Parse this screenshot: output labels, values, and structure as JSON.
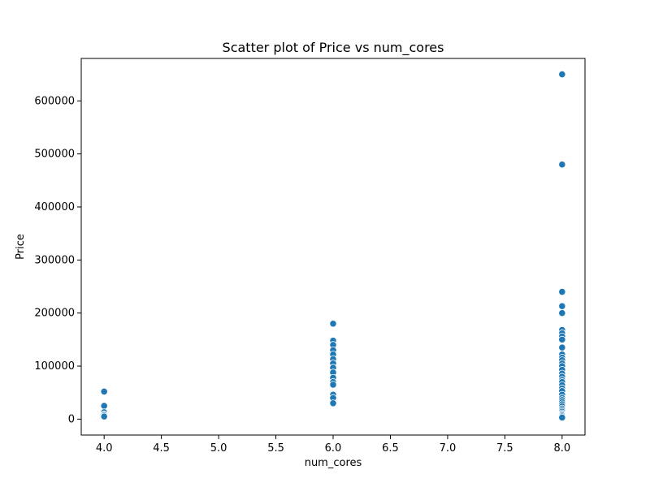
{
  "chart_data": {
    "type": "scatter",
    "title": "Scatter plot of Price vs num_cores",
    "xlabel": "num_cores",
    "ylabel": "Price",
    "xlim": [
      3.8,
      8.2
    ],
    "ylim": [
      -30000,
      680000
    ],
    "xticks": [
      4.0,
      4.5,
      5.0,
      5.5,
      6.0,
      6.5,
      7.0,
      7.5,
      8.0
    ],
    "xtick_labels": [
      "4.0",
      "4.5",
      "5.0",
      "5.5",
      "6.0",
      "6.5",
      "7.0",
      "7.5",
      "8.0"
    ],
    "yticks": [
      0,
      100000,
      200000,
      300000,
      400000,
      500000,
      600000
    ],
    "ytick_labels": [
      "0",
      "100000",
      "200000",
      "300000",
      "400000",
      "500000",
      "600000"
    ],
    "grid": false,
    "color": "#1f77b4",
    "points": [
      {
        "x": 4,
        "y": 52000
      },
      {
        "x": 4,
        "y": 25000
      },
      {
        "x": 4,
        "y": 13000
      },
      {
        "x": 4,
        "y": 9000
      },
      {
        "x": 4,
        "y": 7000
      },
      {
        "x": 4,
        "y": 5000
      },
      {
        "x": 6,
        "y": 180000
      },
      {
        "x": 6,
        "y": 148000
      },
      {
        "x": 6,
        "y": 140000
      },
      {
        "x": 6,
        "y": 130000
      },
      {
        "x": 6,
        "y": 122000
      },
      {
        "x": 6,
        "y": 113000
      },
      {
        "x": 6,
        "y": 105000
      },
      {
        "x": 6,
        "y": 97000
      },
      {
        "x": 6,
        "y": 88000
      },
      {
        "x": 6,
        "y": 78000
      },
      {
        "x": 6,
        "y": 70000
      },
      {
        "x": 6,
        "y": 65000
      },
      {
        "x": 6,
        "y": 46000
      },
      {
        "x": 6,
        "y": 40000
      },
      {
        "x": 6,
        "y": 30000
      },
      {
        "x": 8,
        "y": 650000
      },
      {
        "x": 8,
        "y": 480000
      },
      {
        "x": 8,
        "y": 240000
      },
      {
        "x": 8,
        "y": 213000
      },
      {
        "x": 8,
        "y": 200000
      },
      {
        "x": 8,
        "y": 168000
      },
      {
        "x": 8,
        "y": 162000
      },
      {
        "x": 8,
        "y": 156000
      },
      {
        "x": 8,
        "y": 150000
      },
      {
        "x": 8,
        "y": 135000
      },
      {
        "x": 8,
        "y": 122000
      },
      {
        "x": 8,
        "y": 116000
      },
      {
        "x": 8,
        "y": 111000
      },
      {
        "x": 8,
        "y": 105000
      },
      {
        "x": 8,
        "y": 100000
      },
      {
        "x": 8,
        "y": 93000
      },
      {
        "x": 8,
        "y": 86000
      },
      {
        "x": 8,
        "y": 80000
      },
      {
        "x": 8,
        "y": 74000
      },
      {
        "x": 8,
        "y": 70000
      },
      {
        "x": 8,
        "y": 64000
      },
      {
        "x": 8,
        "y": 58000
      },
      {
        "x": 8,
        "y": 53000
      },
      {
        "x": 8,
        "y": 46000
      },
      {
        "x": 8,
        "y": 40000
      },
      {
        "x": 8,
        "y": 36000
      },
      {
        "x": 8,
        "y": 32000
      },
      {
        "x": 8,
        "y": 28000
      },
      {
        "x": 8,
        "y": 24000
      },
      {
        "x": 8,
        "y": 20000
      },
      {
        "x": 8,
        "y": 17000
      },
      {
        "x": 8,
        "y": 14000
      },
      {
        "x": 8,
        "y": 11000
      },
      {
        "x": 8,
        "y": 9000
      },
      {
        "x": 8,
        "y": 7000
      },
      {
        "x": 8,
        "y": 5000
      },
      {
        "x": 8,
        "y": 3000
      }
    ]
  }
}
